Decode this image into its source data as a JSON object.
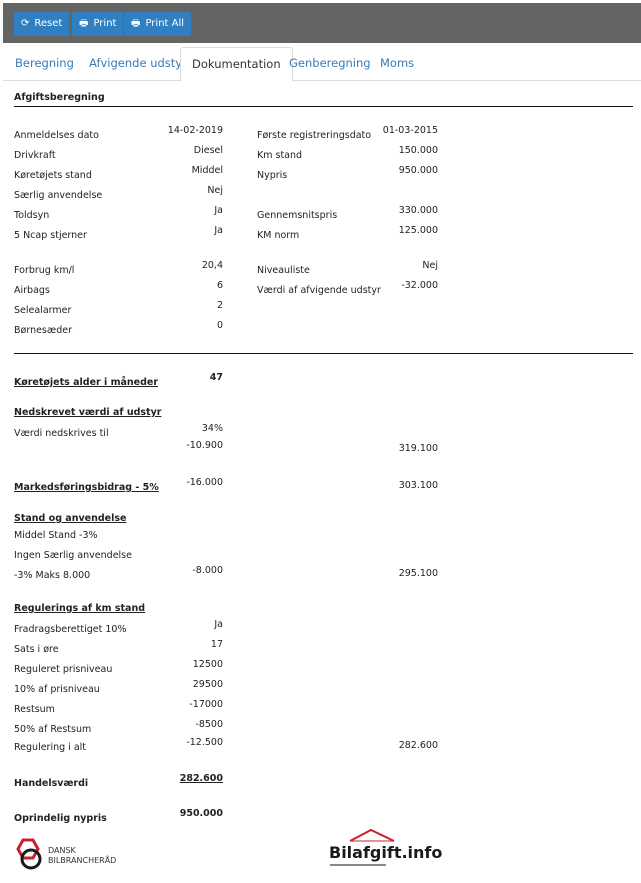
{
  "toolbar": {
    "buttons": [
      {
        "label": "Reset",
        "icon": "refresh-icon"
      },
      {
        "label": "Print",
        "icon": "printer-icon"
      },
      {
        "label": "Print All",
        "icon": "printer-icon"
      }
    ]
  },
  "tabs": [
    {
      "label": "Beregning",
      "active": false
    },
    {
      "label": "Afvigende udstyr",
      "active": false
    },
    {
      "label": "Dokumentation",
      "active": true
    },
    {
      "label": "Genberegning",
      "active": false
    },
    {
      "label": "Moms",
      "active": false
    }
  ],
  "section_title": "Afgiftsberegning",
  "rows": [
    {
      "label": "Anmeldelses dato",
      "value": "14-02-2019",
      "label2": "Første registreringsdato",
      "value2": "01-03-2015"
    },
    {
      "label": "Drivkraft",
      "value": "Diesel",
      "label2": "Km stand",
      "value2": "150.000"
    },
    {
      "label": "Køretøjets stand",
      "value": "Middel",
      "label2": "Nypris",
      "value2": "950.000"
    },
    {
      "label": "Særlig anvendelse",
      "value": "Nej"
    },
    {
      "label": "Toldsyn",
      "value": "Ja",
      "label2": "Gennemsnitspris",
      "value2": "330.000"
    },
    {
      "label": "5 Ncap stjerner",
      "value": "Ja",
      "label2": "KM norm",
      "value2": "125.000"
    },
    {
      "label": "Forbrug km/l",
      "value": "20,4",
      "label2": "Niveauliste",
      "value2": "Nej"
    },
    {
      "label": "Airbags",
      "value": "6",
      "label2": "Værdi af afvigende udstyr",
      "value2": "-32.000"
    },
    {
      "label": "Selealarmer",
      "value": "2"
    },
    {
      "label": "Børnesæder",
      "value": "0"
    },
    {
      "label": "Køretøjets alder i måneder",
      "value": "47",
      "style": "heading",
      "vbold": true
    },
    {
      "label": "Nedskrevet værdi af udstyr",
      "style": "heading"
    },
    {
      "label": "Værdi nedskrives til",
      "value": "34%"
    },
    {
      "value": "-10.900",
      "total": "319.100"
    },
    {
      "label": "Markedsføringsbidrag - 5%",
      "value": "-16.000",
      "total": "303.100",
      "style": "heading"
    },
    {
      "label": "Stand og anvendelse",
      "style": "heading"
    },
    {
      "label": "Middel Stand -3%"
    },
    {
      "label": "Ingen Særlig anvendelse"
    },
    {
      "label": "-3% Maks 8.000",
      "value": "-8.000",
      "total": "295.100"
    },
    {
      "label": "Regulerings af km stand",
      "style": "heading"
    },
    {
      "label": "Fradragsberettiget 10%",
      "value": "Ja"
    },
    {
      "label": "Sats i øre",
      "value": "17"
    },
    {
      "label": "Reguleret prisniveau",
      "value": "12500"
    },
    {
      "label": "10% af prisniveau",
      "value": "29500"
    },
    {
      "label": "Restsum",
      "value": "-17000"
    },
    {
      "label": "50% af Restsum",
      "value": "-8500"
    },
    {
      "label": "Regulering i alt",
      "value": "-12.500",
      "total": "282.600"
    },
    {
      "label": "Handelsværdi",
      "value": "282.600",
      "style": "bold",
      "vbold": true,
      "vunderline": true
    },
    {
      "label": "Oprindelig nypris",
      "value": "950.000",
      "style": "bold",
      "vbold": true
    }
  ],
  "logos": {
    "dbr": {
      "line1": "DANSK",
      "line2": "BILBRANCHERÅD",
      "colors": [
        "#c8202f",
        "#1a1a1a"
      ]
    },
    "bilafgift": {
      "text": "Bilafgift.info",
      "roof_color": "#c8202f"
    }
  },
  "colors": {
    "toolbar": "#646464",
    "button": "#2f7fc1",
    "tab_link": "#3a7ab6"
  }
}
